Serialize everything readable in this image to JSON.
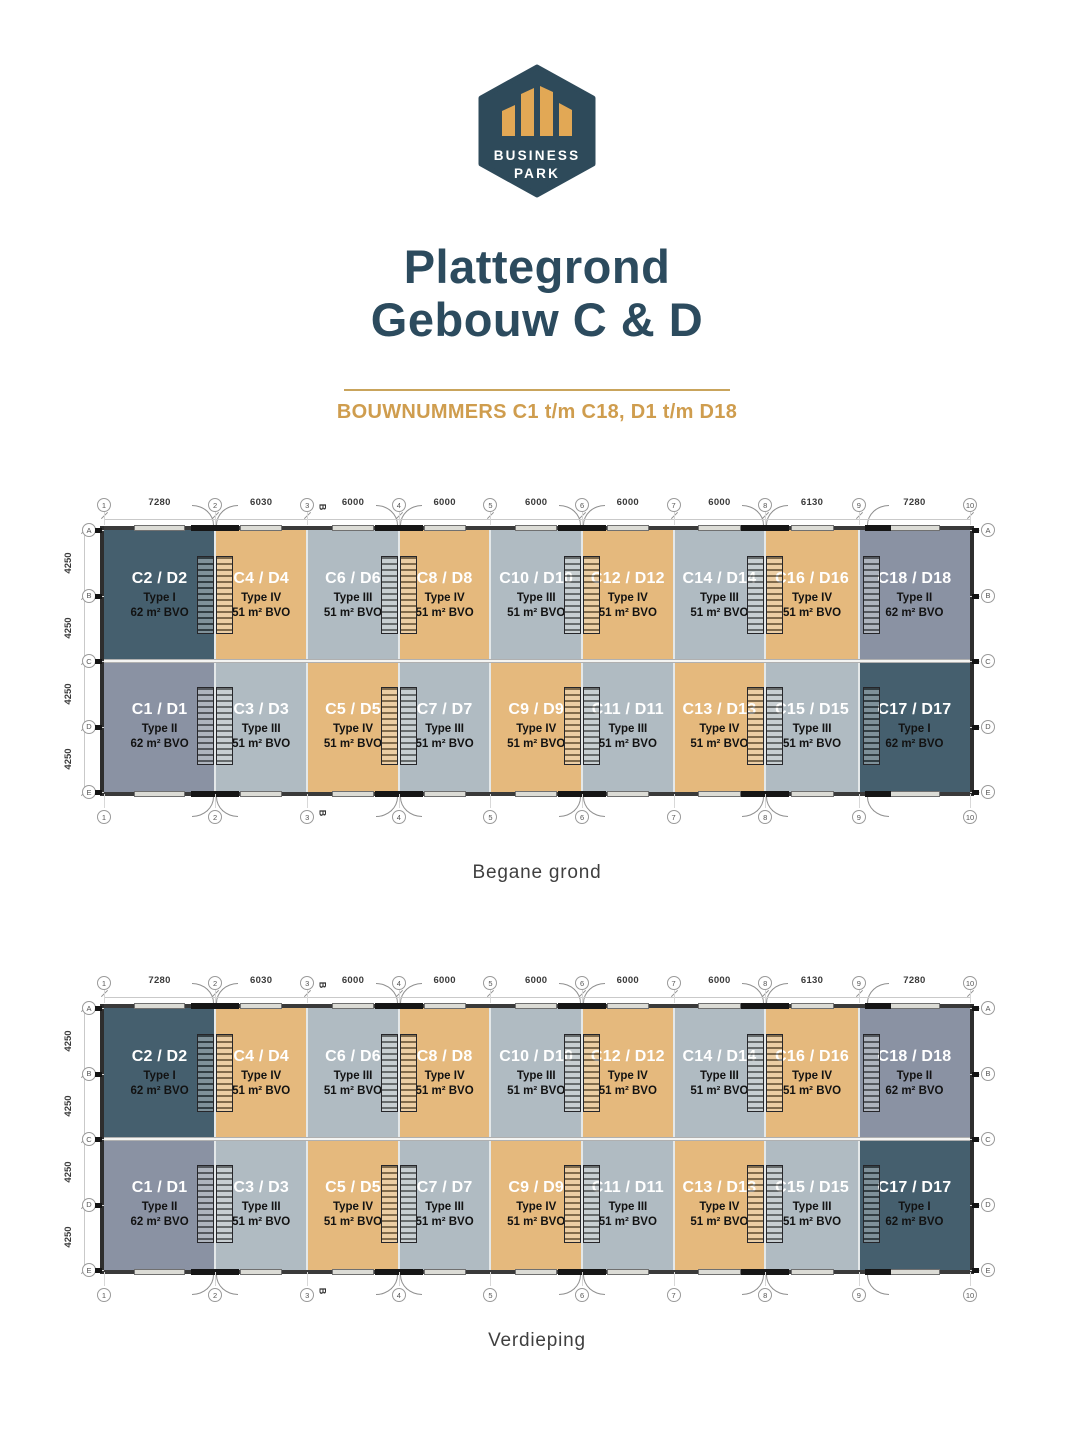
{
  "logo": {
    "line1": "BUSINESS",
    "line2": "PARK"
  },
  "title": {
    "line1": "Plattegrond",
    "line2": "Gebouw C & D"
  },
  "subtitle": "BOUWNUMMERS C1 t/m C18, D1 t/m D18",
  "colors": {
    "brand_dark": "#2c4b5e",
    "accent_gold": "#cf9d4e",
    "logo_hex": "#2e4a5a",
    "logo_bars": "#e2a855",
    "type_I": "#455f6e",
    "type_II": "#8a92a3",
    "type_III": "#b0bbc2",
    "type_IV": "#e5b97d"
  },
  "grid": {
    "col_labels": [
      "1",
      "2",
      "3",
      "4",
      "5",
      "6",
      "7",
      "8",
      "9",
      "10"
    ],
    "col_dims": [
      "7280",
      "6030",
      "6000",
      "6000",
      "6000",
      "6000",
      "6000",
      "6130",
      "7280"
    ],
    "row_labels": [
      "A",
      "B",
      "C",
      "D",
      "E"
    ],
    "row_dims": [
      "4250",
      "4250",
      "4250",
      "4250"
    ],
    "section_marker": "B"
  },
  "units": {
    "top": [
      {
        "name": "C2 / D2",
        "type": "Type I",
        "area": "62 m² BVO",
        "type_key": "I"
      },
      {
        "name": "C4 / D4",
        "type": "Type IV",
        "area": "51 m² BVO",
        "type_key": "IV"
      },
      {
        "name": "C6 / D6",
        "type": "Type III",
        "area": "51 m² BVO",
        "type_key": "III"
      },
      {
        "name": "C8 / D8",
        "type": "Type IV",
        "area": "51 m² BVO",
        "type_key": "IV"
      },
      {
        "name": "C10 / D10",
        "type": "Type III",
        "area": "51 m² BVO",
        "type_key": "III"
      },
      {
        "name": "C12 / D12",
        "type": "Type IV",
        "area": "51 m² BVO",
        "type_key": "IV"
      },
      {
        "name": "C14 / D14",
        "type": "Type III",
        "area": "51 m² BVO",
        "type_key": "III"
      },
      {
        "name": "C16 / D16",
        "type": "Type IV",
        "area": "51 m² BVO",
        "type_key": "IV"
      },
      {
        "name": "C18 / D18",
        "type": "Type II",
        "area": "62 m² BVO",
        "type_key": "II"
      }
    ],
    "bottom": [
      {
        "name": "C1 / D1",
        "type": "Type II",
        "area": "62 m² BVO",
        "type_key": "II"
      },
      {
        "name": "C3 / D3",
        "type": "Type III",
        "area": "51 m² BVO",
        "type_key": "III"
      },
      {
        "name": "C5 / D5",
        "type": "Type IV",
        "area": "51 m² BVO",
        "type_key": "IV"
      },
      {
        "name": "C7 / D7",
        "type": "Type III",
        "area": "51 m² BVO",
        "type_key": "III"
      },
      {
        "name": "C9 / D9",
        "type": "Type IV",
        "area": "51 m² BVO",
        "type_key": "IV"
      },
      {
        "name": "C11 / D11",
        "type": "Type III",
        "area": "51 m² BVO",
        "type_key": "III"
      },
      {
        "name": "C13 / D13",
        "type": "Type IV",
        "area": "51 m² BVO",
        "type_key": "IV"
      },
      {
        "name": "C15 / D15",
        "type": "Type III",
        "area": "51 m² BVO",
        "type_key": "III"
      },
      {
        "name": "C17 / D17",
        "type": "Type I",
        "area": "62 m² BVO",
        "type_key": "I"
      }
    ]
  },
  "plans": [
    {
      "caption": "Begane grond"
    },
    {
      "caption": "Verdieping"
    }
  ]
}
